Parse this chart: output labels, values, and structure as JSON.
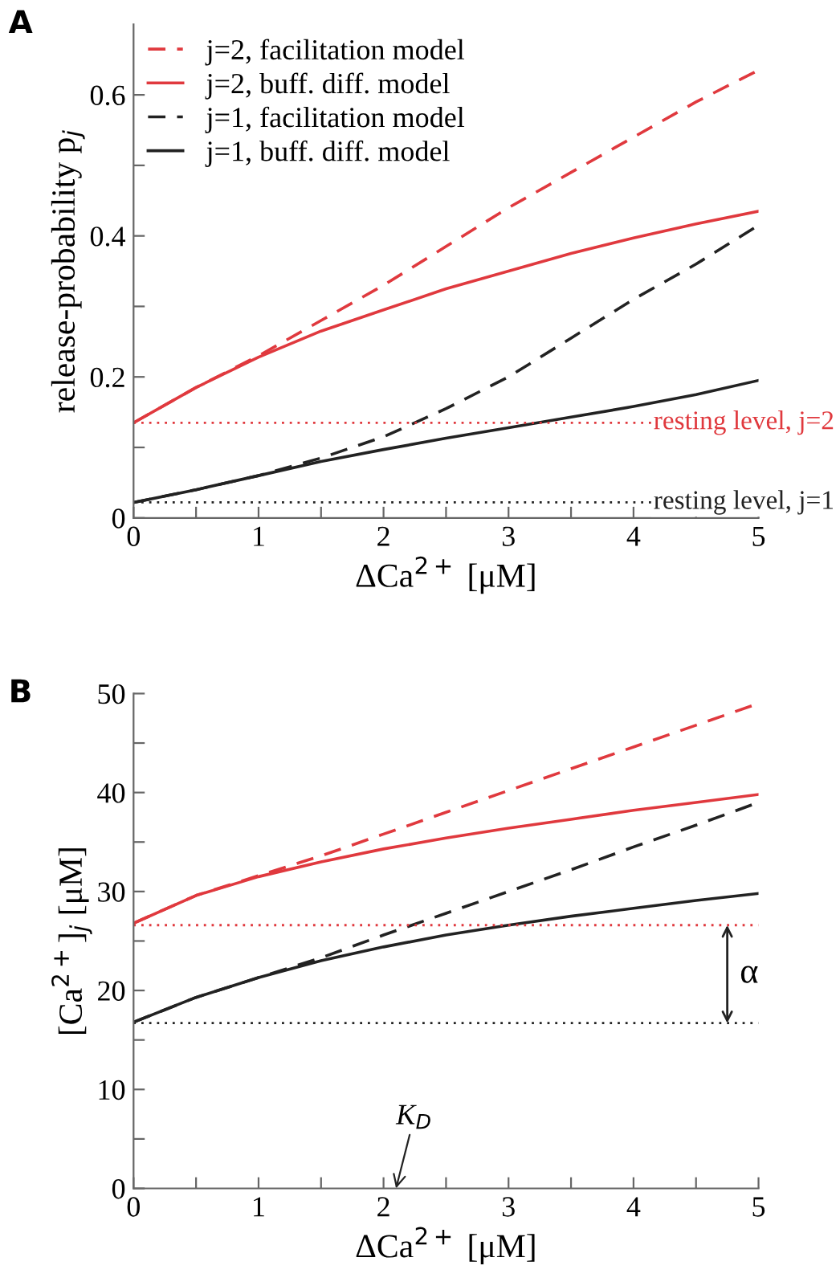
{
  "chart_data": [
    {
      "type": "line",
      "title": "A",
      "xlabel": "ΔCa$^{2+}$ [μM]",
      "ylabel": "release-probability p$_{j}$",
      "x": [
        0,
        0.5,
        1,
        1.5,
        2,
        2.5,
        3,
        3.5,
        4,
        4.5,
        5
      ],
      "xlim": [
        0,
        5
      ],
      "ylim": [
        0,
        0.7
      ],
      "xticks": [
        0,
        {
          "value": 0.5,
          "label": null
        },
        1,
        {
          "value": 1.5,
          "label": null
        },
        2,
        {
          "value": 2.5,
          "label": null
        },
        3,
        {
          "value": 3.5,
          "label": null
        },
        4,
        {
          "value": 4.5,
          "label": null
        },
        5
      ],
      "yticks": [
        0,
        {
          "value": 0.1,
          "label": null
        },
        0.2,
        {
          "value": 0.3,
          "label": null
        },
        0.4,
        {
          "value": 0.5,
          "label": null
        },
        0.6
      ],
      "grid": false,
      "legend": "top left",
      "series": [
        {
          "name": "j=2, facilitation model",
          "color": "#e0393e",
          "line_style": "dashed",
          "values": [
            0.135,
            0.185,
            0.23,
            0.28,
            0.33,
            0.385,
            0.44,
            0.49,
            0.54,
            0.59,
            0.635
          ]
        },
        {
          "name": "j=2, buff. diff. model",
          "color": "#e0393e",
          "line_style": "solid",
          "values": [
            0.135,
            0.185,
            0.228,
            0.265,
            0.295,
            0.325,
            0.35,
            0.375,
            0.397,
            0.417,
            0.435
          ]
        },
        {
          "name": "j=1, facilitation model",
          "color": "#222222",
          "line_style": "dashed",
          "values": [
            0.022,
            0.04,
            0.06,
            0.085,
            0.115,
            0.155,
            0.2,
            0.255,
            0.31,
            0.36,
            0.415
          ]
        },
        {
          "name": "j=1, buff. diff. model",
          "color": "#222222",
          "line_style": "solid",
          "values": [
            0.022,
            0.04,
            0.06,
            0.08,
            0.097,
            0.113,
            0.128,
            0.143,
            0.158,
            0.175,
            0.195
          ]
        }
      ],
      "ref_lines": [
        {
          "axis": "y",
          "value": 0.135,
          "color": "#e0393e",
          "line_style": "dotted"
        },
        {
          "axis": "y",
          "value": 0.022,
          "color": "#222222",
          "line_style": "dotted"
        }
      ],
      "annotations": [
        {
          "text": "resting level, j=2",
          "x": 5,
          "y": 0.135
        },
        {
          "text": "resting level, j=1",
          "x": 5,
          "y": 0.022
        }
      ]
    },
    {
      "type": "line",
      "title": "B",
      "xlabel": "ΔCa$^{2+}$ [μM]",
      "ylabel": "[Ca$^{2+}$]$_{j}$ [μM]",
      "x": [
        0,
        0.5,
        1,
        1.5,
        2,
        2.5,
        3,
        3.5,
        4,
        4.5,
        5
      ],
      "xlim": [
        0,
        5
      ],
      "ylim": [
        0,
        50
      ],
      "xticks": [
        0,
        {
          "value": 0.5,
          "label": null
        },
        1,
        {
          "value": 1.5,
          "label": null
        },
        2,
        {
          "value": 2.5,
          "label": null
        },
        3,
        {
          "value": 3.5,
          "label": null
        },
        4,
        {
          "value": 4.5,
          "label": null
        },
        5
      ],
      "yticks": [
        0,
        {
          "value": 5,
          "label": null
        },
        10,
        {
          "value": 15,
          "label": null
        },
        20,
        {
          "value": 25,
          "label": null
        },
        30,
        {
          "value": 35,
          "label": null
        },
        40,
        {
          "value": 45,
          "label": null
        },
        50
      ],
      "grid": false,
      "series": [
        {
          "color": "#e0393e",
          "line_style": "dashed",
          "values": [
            26.8,
            29.6,
            31.6,
            33.6,
            35.8,
            38.0,
            40.2,
            42.4,
            44.6,
            46.8,
            49
          ]
        },
        {
          "color": "#e0393e",
          "line_style": "solid",
          "values": [
            26.8,
            29.6,
            31.5,
            33,
            34.3,
            35.4,
            36.4,
            37.3,
            38.2,
            39,
            39.8
          ]
        },
        {
          "color": "#222222",
          "line_style": "dashed",
          "values": [
            16.8,
            19.3,
            21.3,
            23.3,
            25.6,
            27.8,
            30,
            32.2,
            34.5,
            36.7,
            39
          ]
        },
        {
          "color": "#222222",
          "line_style": "solid",
          "values": [
            16.8,
            19.3,
            21.3,
            23,
            24.4,
            25.6,
            26.6,
            27.5,
            28.3,
            29.1,
            29.8
          ]
        }
      ],
      "ref_lines": [
        {
          "axis": "y",
          "value": 26.6,
          "color": "#e0393e",
          "line_style": "dotted"
        },
        {
          "axis": "y",
          "value": 16.7,
          "color": "#222222",
          "line_style": "dotted"
        }
      ],
      "annotations": [
        "K$_{D}$",
        "α"
      ]
    }
  ]
}
